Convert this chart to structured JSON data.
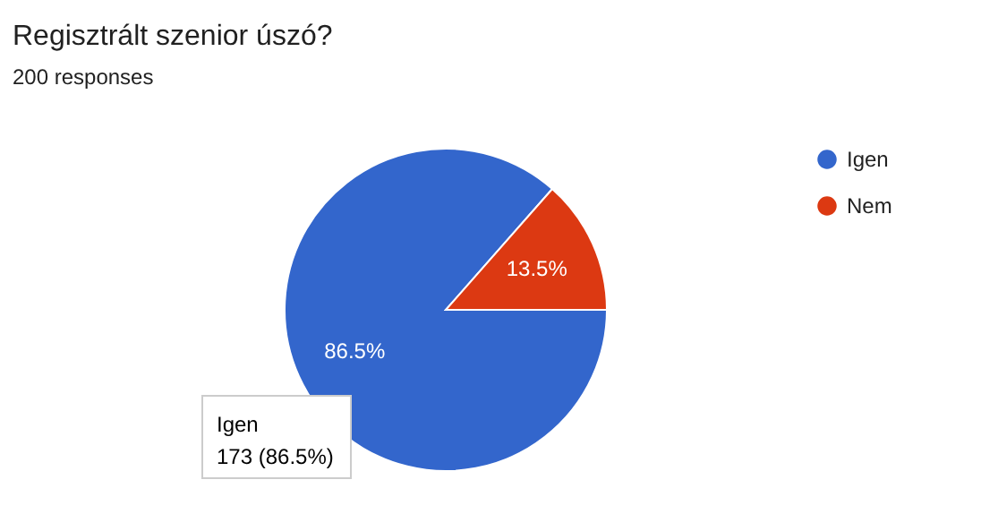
{
  "chart_data": {
    "type": "pie",
    "title": "Regisztrált szenior úszó?",
    "subtitle": "200 responses",
    "categories": [
      "Igen",
      "Nem"
    ],
    "values": [
      86.5,
      13.5
    ],
    "colors": [
      "#3366cc",
      "#dc3912"
    ],
    "value_labels": [
      "86.5%",
      "13.5%"
    ],
    "legend": "right",
    "annotations": [
      "Igen",
      "173 (86.5%)"
    ]
  }
}
